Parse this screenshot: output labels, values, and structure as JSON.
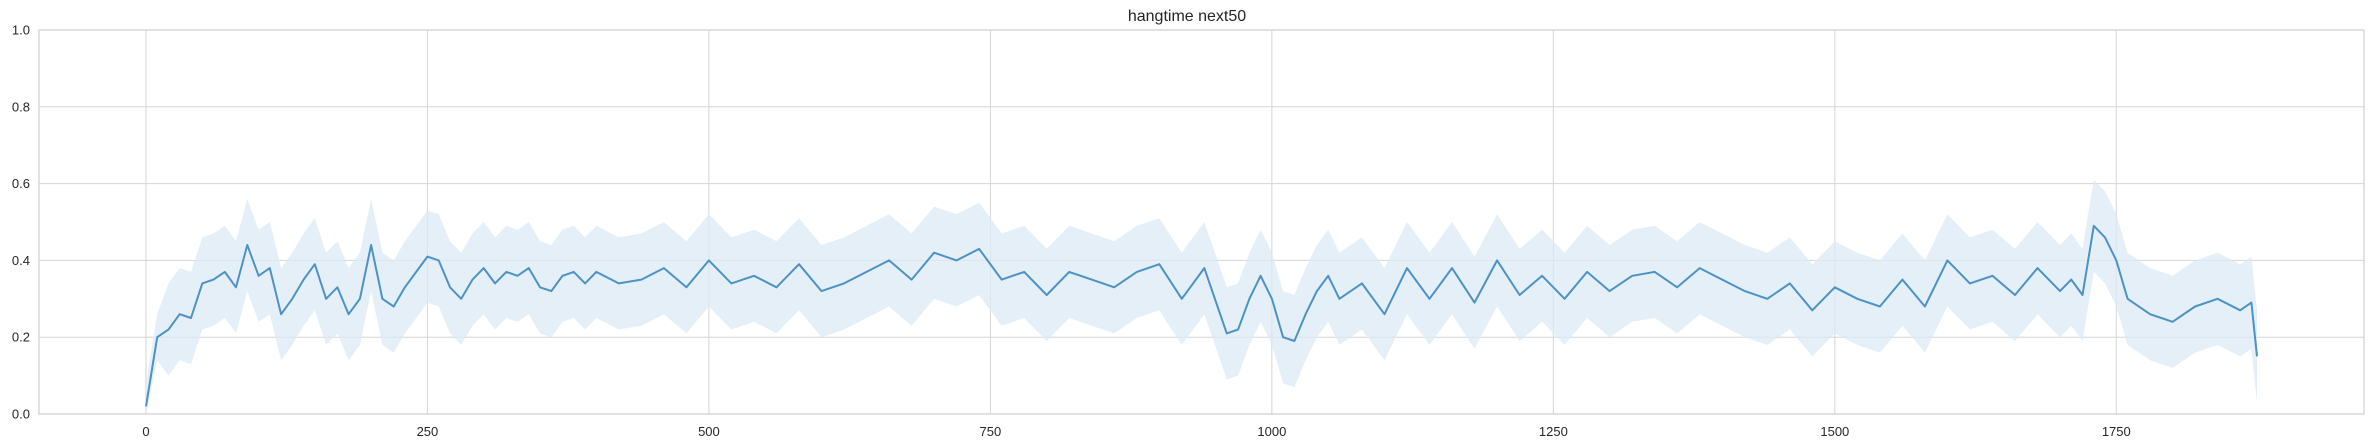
{
  "chart_data": {
    "type": "line",
    "title": "hangtime next50",
    "xlabel": "",
    "ylabel": "",
    "xlim": [
      -95,
      1970
    ],
    "ylim": [
      0.0,
      1.0
    ],
    "x_ticks": [
      0,
      250,
      500,
      750,
      1000,
      1250,
      1500,
      1750
    ],
    "x_tick_labels": [
      "0",
      "250",
      "500",
      "750",
      "1000",
      "1250",
      "1500",
      "1750"
    ],
    "y_ticks": [
      0.0,
      0.2,
      0.4,
      0.6,
      0.8,
      1.0
    ],
    "y_tick_labels": [
      "0.0",
      "0.2",
      "0.4",
      "0.6",
      "0.8",
      "1.0"
    ],
    "grid": true,
    "legend": "none",
    "line_color": "#4c92c3",
    "band_color": "#dbe9f6",
    "band_half_width": 0.12,
    "series": [
      {
        "x": [
          0,
          10,
          20,
          30,
          40,
          50,
          60,
          70,
          80,
          90,
          100,
          110,
          120,
          130,
          140,
          150,
          160,
          170,
          180,
          190,
          200,
          210,
          220,
          230,
          240,
          250,
          260,
          270,
          280,
          290,
          300,
          310,
          320,
          330,
          340,
          350,
          360,
          370,
          380,
          390,
          400,
          420,
          440,
          460,
          480,
          500,
          520,
          540,
          560,
          580,
          600,
          620,
          640,
          660,
          680,
          700,
          720,
          740,
          760,
          780,
          800,
          820,
          840,
          860,
          880,
          900,
          920,
          940,
          960,
          970,
          980,
          990,
          1000,
          1010,
          1020,
          1030,
          1040,
          1050,
          1060,
          1080,
          1100,
          1120,
          1140,
          1160,
          1180,
          1200,
          1220,
          1240,
          1260,
          1280,
          1300,
          1320,
          1340,
          1360,
          1380,
          1400,
          1420,
          1440,
          1460,
          1480,
          1500,
          1520,
          1540,
          1560,
          1580,
          1600,
          1620,
          1640,
          1660,
          1680,
          1700,
          1710,
          1720,
          1730,
          1740,
          1750,
          1760,
          1780,
          1800,
          1820,
          1840,
          1860,
          1870,
          1875
        ],
        "values": [
          0.02,
          0.2,
          0.22,
          0.26,
          0.25,
          0.34,
          0.35,
          0.37,
          0.33,
          0.44,
          0.36,
          0.38,
          0.26,
          0.3,
          0.35,
          0.39,
          0.3,
          0.33,
          0.26,
          0.3,
          0.44,
          0.3,
          0.28,
          0.33,
          0.37,
          0.41,
          0.4,
          0.33,
          0.3,
          0.35,
          0.38,
          0.34,
          0.37,
          0.36,
          0.38,
          0.33,
          0.32,
          0.36,
          0.37,
          0.34,
          0.37,
          0.34,
          0.35,
          0.38,
          0.33,
          0.4,
          0.34,
          0.36,
          0.33,
          0.39,
          0.32,
          0.34,
          0.37,
          0.4,
          0.35,
          0.42,
          0.4,
          0.43,
          0.35,
          0.37,
          0.31,
          0.37,
          0.35,
          0.33,
          0.37,
          0.39,
          0.3,
          0.38,
          0.21,
          0.22,
          0.3,
          0.36,
          0.3,
          0.2,
          0.19,
          0.26,
          0.32,
          0.36,
          0.3,
          0.34,
          0.26,
          0.38,
          0.3,
          0.38,
          0.29,
          0.4,
          0.31,
          0.36,
          0.3,
          0.37,
          0.32,
          0.36,
          0.37,
          0.33,
          0.38,
          0.35,
          0.32,
          0.3,
          0.34,
          0.27,
          0.33,
          0.3,
          0.28,
          0.35,
          0.28,
          0.4,
          0.34,
          0.36,
          0.31,
          0.38,
          0.32,
          0.35,
          0.31,
          0.49,
          0.46,
          0.4,
          0.3,
          0.26,
          0.24,
          0.28,
          0.3,
          0.27,
          0.29,
          0.15
        ]
      }
    ]
  }
}
